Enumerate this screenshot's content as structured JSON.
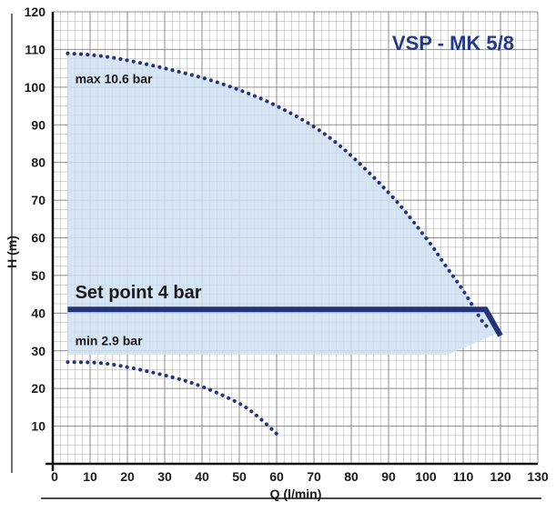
{
  "chart_data": {
    "type": "line",
    "title": "VSP - MK 5/8",
    "xlabel": "Q (l/min)",
    "ylabel": "H (m)",
    "xlim": [
      0,
      130
    ],
    "ylim": [
      0,
      120
    ],
    "x_ticks": [
      0,
      10,
      20,
      30,
      40,
      50,
      60,
      70,
      80,
      90,
      100,
      110,
      120,
      130
    ],
    "y_ticks": [
      10,
      20,
      30,
      40,
      50,
      60,
      70,
      80,
      90,
      100,
      110,
      120
    ],
    "grid": true,
    "colors": {
      "area_fill": "#cfe1f1",
      "curve": "#22337a",
      "setpoint": "#22337a",
      "title": "#233a86",
      "grid": "#a8a8a8"
    },
    "series": [
      {
        "name": "max 10.6 bar",
        "style": "dotted",
        "x": [
          4,
          15,
          30,
          45,
          60,
          75,
          90,
          100,
          105,
          110,
          115,
          117
        ],
        "y": [
          109,
          108,
          105,
          101,
          95,
          86,
          72,
          60,
          53,
          46,
          38,
          36
        ]
      },
      {
        "name": "min 2.9 bar",
        "style": "dotted",
        "x": [
          4,
          15,
          30,
          40,
          50,
          55,
          60
        ],
        "y": [
          27,
          26.5,
          23.5,
          20.5,
          16,
          12.5,
          8
        ]
      },
      {
        "name": "Set point 4 bar",
        "style": "solid",
        "x": [
          4,
          116,
          120
        ],
        "y": [
          41,
          41,
          34
        ]
      }
    ],
    "area": {
      "x": [
        4,
        15,
        30,
        45,
        60,
        75,
        90,
        100,
        105,
        110,
        115,
        116,
        117,
        120,
        106,
        4
      ],
      "y": [
        109,
        108,
        105,
        101,
        95,
        86,
        72,
        60,
        53,
        46,
        40,
        41,
        38,
        35,
        29,
        29
      ]
    },
    "annotations": [
      {
        "id": "max",
        "text": "max 10.6 bar",
        "x": 6,
        "y": 101,
        "size": "small"
      },
      {
        "id": "setpoint",
        "text": "Set point 4 bar",
        "x": 6,
        "y": 44,
        "size": "big"
      },
      {
        "id": "min",
        "text": "min 2.9 bar",
        "x": 6,
        "y": 31.5,
        "size": "small"
      }
    ]
  }
}
